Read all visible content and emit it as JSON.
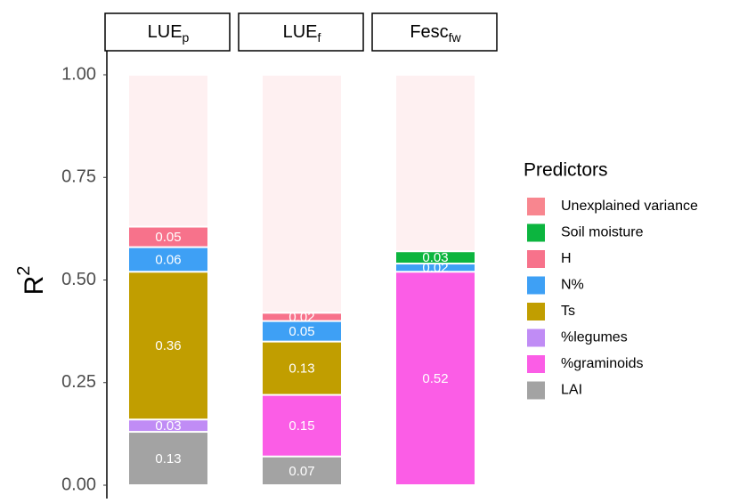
{
  "chart_data": {
    "type": "stacked_bar",
    "categories": [
      {
        "label": "LUE",
        "sub": "p"
      },
      {
        "label": "LUE",
        "sub": "f"
      },
      {
        "label": "Fesc",
        "sub": "fw"
      }
    ],
    "ylabel": {
      "label": "R",
      "sup": "2"
    },
    "ylim": [
      0,
      1
    ],
    "yticks": [
      {
        "value": 0,
        "label": "0.00"
      },
      {
        "value": 0.25,
        "label": "0.25"
      },
      {
        "value": 0.5,
        "label": "0.50"
      },
      {
        "value": 0.75,
        "label": "0.75"
      },
      {
        "value": 1,
        "label": "1.00"
      }
    ],
    "legend_title": "Predictors",
    "legend": "right",
    "series": [
      {
        "name": "Unexplained variance",
        "color": "#f8868f",
        "alpha": 0.12,
        "values": [
          0.37,
          0.58,
          0.43
        ]
      },
      {
        "name": "Soil moisture",
        "color": "#0cb53f",
        "values": [
          null,
          null,
          0.03
        ]
      },
      {
        "name": "H",
        "color": "#f7728b",
        "values": [
          0.05,
          0.02,
          null
        ]
      },
      {
        "name": "N%",
        "color": "#3ea0f5",
        "values": [
          0.06,
          0.05,
          0.02
        ]
      },
      {
        "name": "Ts",
        "color": "#c19e00",
        "values": [
          0.36,
          0.13,
          null
        ]
      },
      {
        "name": "%legumes",
        "color": "#c08cf5",
        "values": [
          0.03,
          null,
          null
        ]
      },
      {
        "name": "%graminoids",
        "color": "#fb5de6",
        "values": [
          null,
          0.15,
          0.52
        ]
      },
      {
        "name": "LAI",
        "color": "#a3a3a3",
        "values": [
          0.13,
          0.07,
          null
        ]
      }
    ]
  }
}
